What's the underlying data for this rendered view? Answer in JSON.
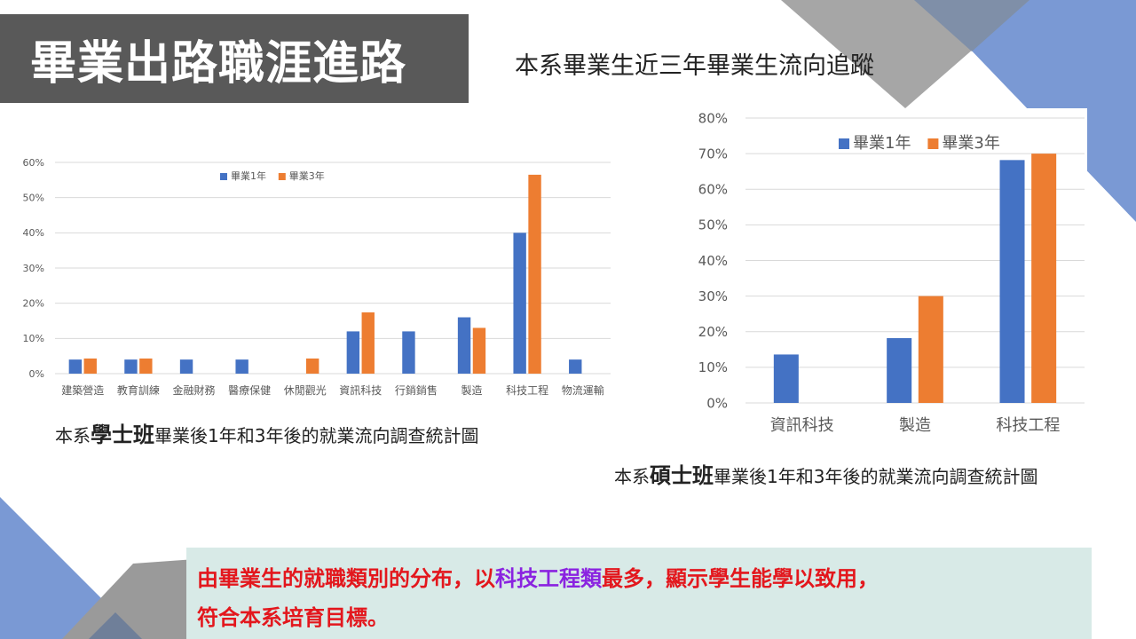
{
  "slide": {
    "title": "畢業出路職涯進路",
    "subtitle": "本系畢業生近三年畢業生流向追蹤",
    "colors": {
      "series1": "#4472c4",
      "series2": "#ed7d31",
      "title_bg": "#595959",
      "conclusion_bg": "#d8eae7",
      "conclusion_text": "#e3171d",
      "highlight_text": "#8a23e0",
      "deco_blue": "#7a99d4",
      "deco_gray": "#9a9a9a"
    }
  },
  "captions": {
    "bachelor": {
      "prefix": "本系",
      "bold": "學士班",
      "suffix": "畢業後1年和3年後的就業流向調查統計圖"
    },
    "master": {
      "prefix": "本系",
      "bold": "碩士班",
      "suffix": "畢業後1年和3年後的就業流向調查統計圖"
    }
  },
  "conclusion": {
    "part1": "由畢業生的就職類別的分布，以",
    "highlight": "科技工程類",
    "part2": "最多，顯示學生能學以致用，",
    "line2": "符合本系培育目標。"
  },
  "chart_data": [
    {
      "type": "bar",
      "categories": [
        "建築營造",
        "教育訓練",
        "金融財務",
        "醫療保健",
        "休閒觀光",
        "資訊科技",
        "行銷銷售",
        "製造",
        "科技工程",
        "物流運輸"
      ],
      "series": [
        {
          "name": "畢業1年",
          "values": [
            4,
            4,
            4,
            4,
            0,
            12,
            12,
            16,
            40,
            4
          ]
        },
        {
          "name": "畢業3年",
          "values": [
            4.3,
            4.3,
            0,
            0,
            4.3,
            17.4,
            0,
            13,
            56.5,
            0
          ]
        }
      ],
      "ylim": [
        0,
        60
      ],
      "yticks": [
        "0%",
        "10%",
        "20%",
        "30%",
        "40%",
        "50%",
        "60%"
      ],
      "grid": true,
      "legend": "top"
    },
    {
      "type": "bar",
      "categories": [
        "資訊科技",
        "製造",
        "科技工程"
      ],
      "series": [
        {
          "name": "畢業1年",
          "values": [
            13.6,
            18.2,
            68.2
          ]
        },
        {
          "name": "畢業3年",
          "values": [
            0,
            30,
            70
          ]
        }
      ],
      "ylim": [
        0,
        80
      ],
      "yticks": [
        "0%",
        "10%",
        "20%",
        "30%",
        "40%",
        "50%",
        "60%",
        "70%",
        "80%"
      ],
      "grid": true,
      "legend": "top"
    }
  ]
}
